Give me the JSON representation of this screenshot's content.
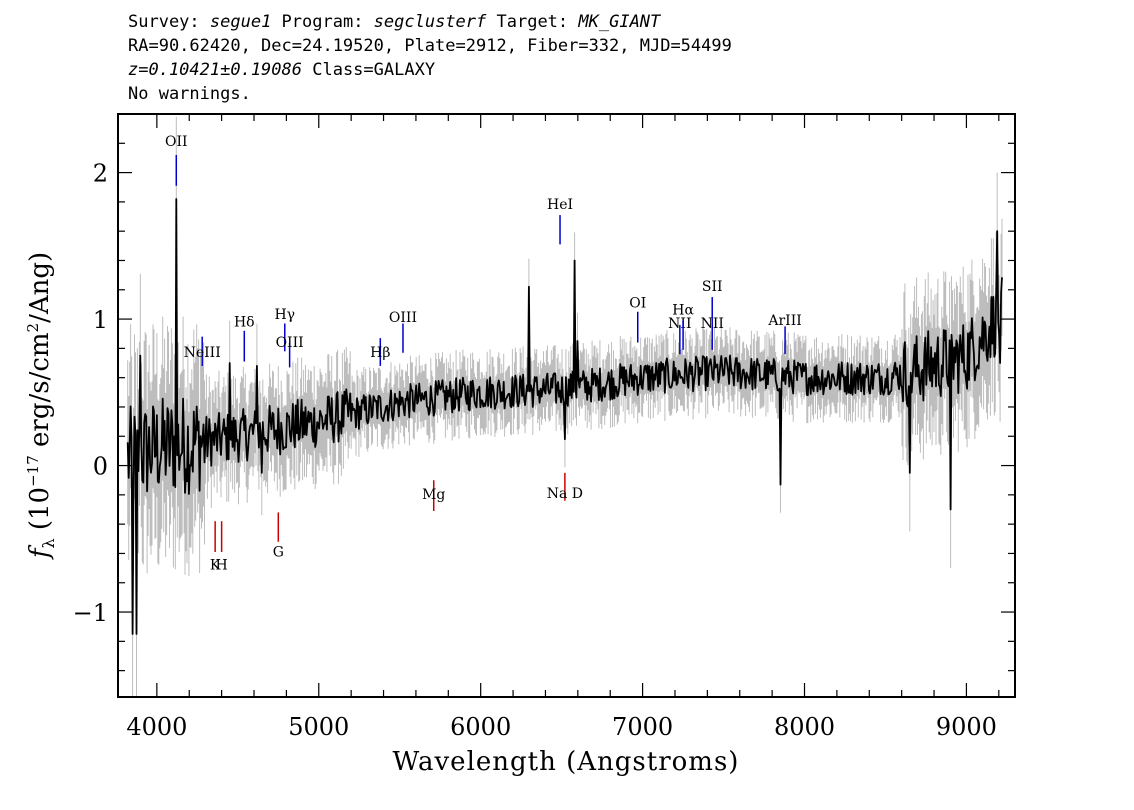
{
  "header": {
    "line1": {
      "survey_label": "Survey: ",
      "survey": "segue1",
      "program_label": " Program: ",
      "program": "segclusterf",
      "target_label": " Target: ",
      "target": "MK_GIANT"
    },
    "line2": "RA=90.62420, Dec=24.19520, Plate=2912, Fiber=332, MJD=54499",
    "line3": {
      "z": "z=0.10421±0.19086",
      "class": " Class=GALAXY"
    },
    "line4": "No warnings."
  },
  "colors": {
    "flux": "#000000",
    "error_band": "#bdbdbd",
    "emission": "#0000cc",
    "absorption": "#cc0000"
  },
  "chart_data": {
    "type": "line",
    "xlabel": "Wavelength (Angstroms)",
    "ylabel": "f_λ (10^-17 erg/s/cm^2/Ang)",
    "xlim": [
      3760,
      9300
    ],
    "ylim": [
      -1.58,
      2.4
    ],
    "x_ticks": [
      "4000",
      "5000",
      "6000",
      "7000",
      "8000",
      "9000"
    ],
    "y_ticks": [
      "−1",
      "0",
      "1",
      "2"
    ],
    "continuum": [
      {
        "x": 3820,
        "y": 0.05
      },
      {
        "x": 4000,
        "y": 0.12
      },
      {
        "x": 4500,
        "y": 0.2
      },
      {
        "x": 5000,
        "y": 0.3
      },
      {
        "x": 5500,
        "y": 0.43
      },
      {
        "x": 6000,
        "y": 0.5
      },
      {
        "x": 6500,
        "y": 0.52
      },
      {
        "x": 7000,
        "y": 0.6
      },
      {
        "x": 7500,
        "y": 0.64
      },
      {
        "x": 8000,
        "y": 0.6
      },
      {
        "x": 8500,
        "y": 0.6
      },
      {
        "x": 9000,
        "y": 0.75
      },
      {
        "x": 9220,
        "y": 1.05
      }
    ],
    "spikes": [
      {
        "x": 3850,
        "y": -1.15
      },
      {
        "x": 3875,
        "y": -1.15
      },
      {
        "x": 3900,
        "y": 0.75
      },
      {
        "x": 4120,
        "y": 1.82
      },
      {
        "x": 4450,
        "y": 0.7
      },
      {
        "x": 4620,
        "y": 0.68
      },
      {
        "x": 4650,
        "y": -0.05
      },
      {
        "x": 6300,
        "y": 1.22
      },
      {
        "x": 6520,
        "y": 0.18
      },
      {
        "x": 6580,
        "y": 1.4
      },
      {
        "x": 6600,
        "y": 0.85
      },
      {
        "x": 7850,
        "y": -0.13
      },
      {
        "x": 8650,
        "y": -0.05
      },
      {
        "x": 8900,
        "y": -0.3
      },
      {
        "x": 9190,
        "y": 1.6
      },
      {
        "x": 9210,
        "y": 0.7
      }
    ],
    "emission_lines": [
      {
        "name": "OII",
        "x": 4120,
        "y1": 1.91,
        "y2": 2.12,
        "label_y": 2.18
      },
      {
        "name": "NeIII",
        "x": 4280,
        "y1": 0.68,
        "y2": 0.88,
        "label_y": 0.74
      },
      {
        "name": "Hδ",
        "x": 4540,
        "y1": 0.71,
        "y2": 0.92,
        "label_y": 0.95
      },
      {
        "name": "Hγ",
        "x": 4790,
        "y1": 0.78,
        "y2": 0.97,
        "label_y": 1.0
      },
      {
        "name": "OIII",
        "x": 4820,
        "y1": 0.67,
        "y2": 0.84,
        "label_y": 0.81
      },
      {
        "name": "Hβ",
        "x": 5380,
        "y1": 0.68,
        "y2": 0.87,
        "label_y": 0.74
      },
      {
        "name": "OIII",
        "x": 5520,
        "y1": 0.77,
        "y2": 0.97,
        "label_y": 0.98
      },
      {
        "name": "HeI",
        "x": 6490,
        "y1": 1.51,
        "y2": 1.71,
        "label_y": 1.75
      },
      {
        "name": "OI",
        "x": 6970,
        "y1": 0.84,
        "y2": 1.05,
        "label_y": 1.08
      },
      {
        "name": "NII",
        "x": 7230,
        "y1": 0.76,
        "y2": 0.96,
        "label_y": 0.94
      },
      {
        "name": "Hα",
        "x": 7250,
        "y1": 0.79,
        "y2": 0.99,
        "label_y": 1.03
      },
      {
        "name": "NII",
        "x": 7430,
        "y1": 0.79,
        "y2": 0.97,
        "label_y": 0.94
      },
      {
        "name": "SII",
        "x": 7430,
        "y1": 0.94,
        "y2": 1.15,
        "label_y": 1.19
      },
      {
        "name": "ArIII",
        "x": 7880,
        "y1": 0.76,
        "y2": 0.95,
        "label_y": 0.96
      }
    ],
    "absorption_lines": [
      {
        "name": "K",
        "x": 4360,
        "y1": -0.38,
        "y2": -0.59,
        "label_y": -0.71
      },
      {
        "name": "H",
        "x": 4400,
        "y1": -0.38,
        "y2": -0.59,
        "label_y": -0.71
      },
      {
        "name": "G",
        "x": 4750,
        "y1": -0.32,
        "y2": -0.52,
        "label_y": -0.62
      },
      {
        "name": "Mg",
        "x": 5710,
        "y1": -0.1,
        "y2": -0.31,
        "label_y": -0.23
      },
      {
        "name": "Na D",
        "x": 6520,
        "y1": -0.05,
        "y2": -0.24,
        "label_y": -0.22
      }
    ]
  }
}
